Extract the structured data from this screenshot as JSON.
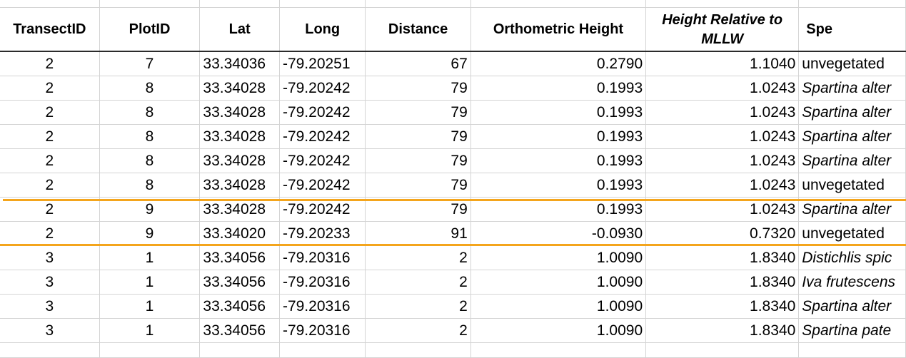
{
  "columns": [
    "TransectID",
    "PlotID",
    "Lat",
    "Long",
    "Distance",
    "Orthometric Height",
    "Height Relative to MLLW",
    "Spe"
  ],
  "rows": [
    {
      "transect": "2",
      "plot": "7",
      "lat": "33.34036",
      "long": "-79.20251",
      "distance": "67",
      "ortho": "0.2790",
      "mllw": "1.1040",
      "species": "unvegetated",
      "italic": false
    },
    {
      "transect": "2",
      "plot": "8",
      "lat": "33.34028",
      "long": "-79.20242",
      "distance": "79",
      "ortho": "0.1993",
      "mllw": "1.0243",
      "species": "Spartina alter",
      "italic": true
    },
    {
      "transect": "2",
      "plot": "8",
      "lat": "33.34028",
      "long": "-79.20242",
      "distance": "79",
      "ortho": "0.1993",
      "mllw": "1.0243",
      "species": "Spartina alter",
      "italic": true
    },
    {
      "transect": "2",
      "plot": "8",
      "lat": "33.34028",
      "long": "-79.20242",
      "distance": "79",
      "ortho": "0.1993",
      "mllw": "1.0243",
      "species": "Spartina alter",
      "italic": true
    },
    {
      "transect": "2",
      "plot": "8",
      "lat": "33.34028",
      "long": "-79.20242",
      "distance": "79",
      "ortho": "0.1993",
      "mllw": "1.0243",
      "species": "Spartina alter",
      "italic": true
    },
    {
      "transect": "2",
      "plot": "8",
      "lat": "33.34028",
      "long": "-79.20242",
      "distance": "79",
      "ortho": "0.1993",
      "mllw": "1.0243",
      "species": "unvegetated",
      "italic": false
    },
    {
      "transect": "2",
      "plot": "9",
      "lat": "33.34028",
      "long": "-79.20242",
      "distance": "79",
      "ortho": "0.1993",
      "mllw": "1.0243",
      "species": "Spartina alter",
      "italic": true
    },
    {
      "transect": "2",
      "plot": "9",
      "lat": "33.34020",
      "long": "-79.20233",
      "distance": "91",
      "ortho": "-0.0930",
      "mllw": "0.7320",
      "species": "unvegetated",
      "italic": false
    },
    {
      "transect": "3",
      "plot": "1",
      "lat": "33.34056",
      "long": "-79.20316",
      "distance": "2",
      "ortho": "1.0090",
      "mllw": "1.8340",
      "species": "Distichlis spic",
      "italic": true
    },
    {
      "transect": "3",
      "plot": "1",
      "lat": "33.34056",
      "long": "-79.20316",
      "distance": "2",
      "ortho": "1.0090",
      "mllw": "1.8340",
      "species": "Iva frutescens",
      "italic": true
    },
    {
      "transect": "3",
      "plot": "1",
      "lat": "33.34056",
      "long": "-79.20316",
      "distance": "2",
      "ortho": "1.0090",
      "mllw": "1.8340",
      "species": "Spartina alter",
      "italic": true
    },
    {
      "transect": "3",
      "plot": "1",
      "lat": "33.34056",
      "long": "-79.20316",
      "distance": "2",
      "ortho": "1.0090",
      "mllw": "1.8340",
      "species": "Spartina pate",
      "italic": true
    }
  ],
  "colors": {
    "highlight_line": "#f4a51c",
    "gridline": "#d4d4d4",
    "header_border": "#2b2b2b"
  }
}
